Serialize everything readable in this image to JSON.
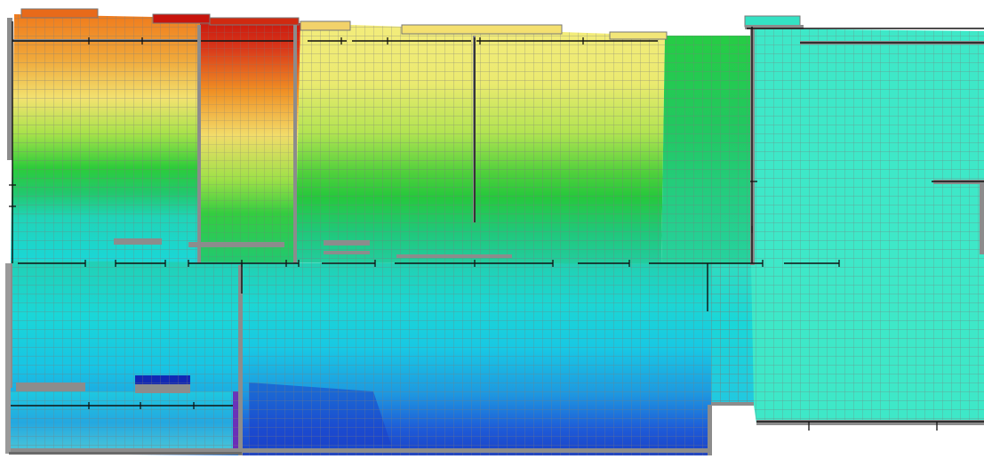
{
  "view": {
    "type": "finite-element contour plot (plan view of slab mesh)",
    "background": "#ffffff"
  },
  "colors": {
    "red": "#c8140c",
    "orange": "#f0901e",
    "yellow": "#f4e878",
    "green": "#22cc3a",
    "cyan": "#1ad7d8",
    "turquoise": "#3ee8c8",
    "blue": "#1e5cd8",
    "deep_blue": "#1228b4",
    "purple": "#7820b0",
    "mesh_line": "#808080",
    "support_line": "#000000",
    "wall_bar": "#8c8c8c"
  },
  "legend": {
    "shown": false
  }
}
